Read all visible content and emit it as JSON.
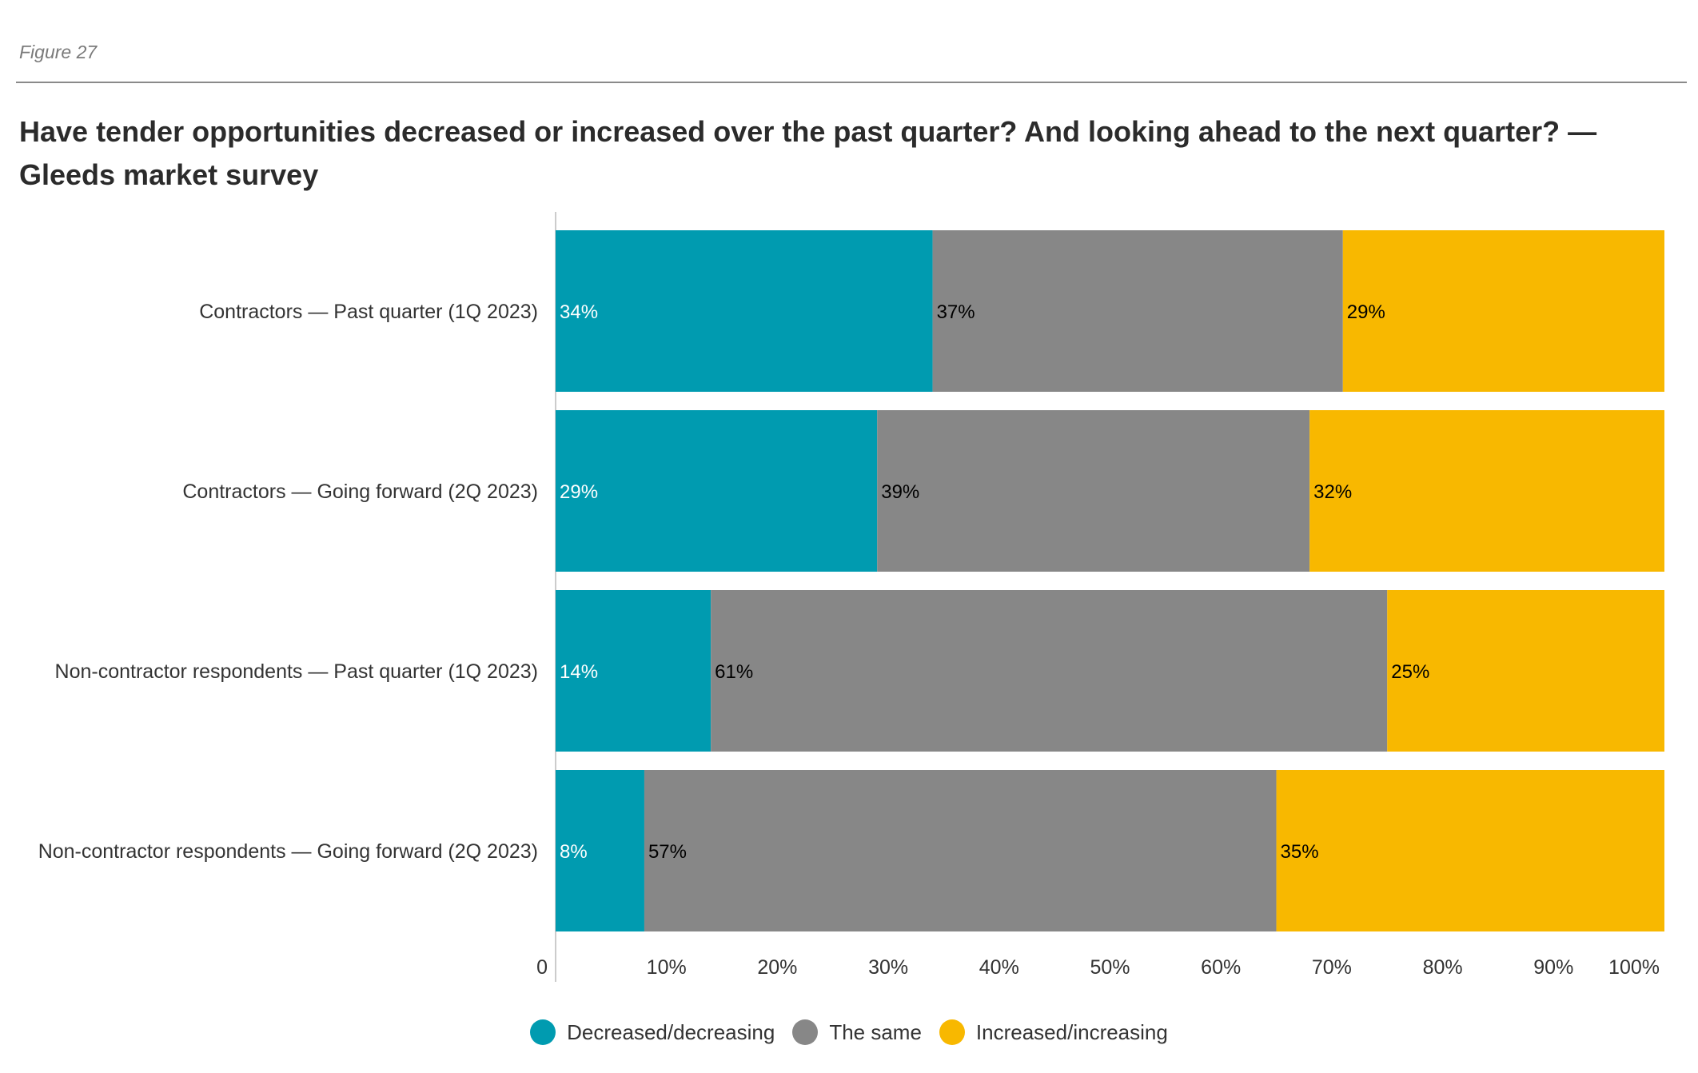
{
  "figure_label": "Figure 27",
  "chart_data": {
    "type": "bar",
    "orientation": "horizontal",
    "stacked": true,
    "title": "Have tender opportunities decreased or increased over the past quarter? And looking ahead to the next quarter? — Gleeds market survey",
    "categories": [
      "Contractors — Past quarter (1Q 2023)",
      "Contractors — Going forward (2Q 2023)",
      "Non-contractor respondents — Past quarter (1Q 2023)",
      "Non-contractor respondents — Going forward (2Q 2023)"
    ],
    "series": [
      {
        "name": "Decreased/decreasing",
        "color": "#009bb0",
        "label_color": "#ffffff",
        "values": [
          34,
          29,
          14,
          8
        ]
      },
      {
        "name": "The same",
        "color": "#878787",
        "label_color": "#000000",
        "values": [
          37,
          39,
          61,
          57
        ]
      },
      {
        "name": "Increased/increasing",
        "color": "#f8b800",
        "label_color": "#000000",
        "values": [
          29,
          32,
          25,
          35
        ]
      }
    ],
    "data_labels": [
      [
        "34%",
        "29%",
        "14%",
        "8%"
      ],
      [
        "37%",
        "39%",
        "61%",
        "57%"
      ],
      [
        "29%",
        "32%",
        "25%",
        "35%"
      ]
    ],
    "x_ticks": [
      "0",
      "10%",
      "20%",
      "30%",
      "40%",
      "50%",
      "60%",
      "70%",
      "80%",
      "90%",
      "100%"
    ],
    "xlim": [
      0,
      100
    ],
    "grid": false,
    "legend_position": "bottom"
  }
}
